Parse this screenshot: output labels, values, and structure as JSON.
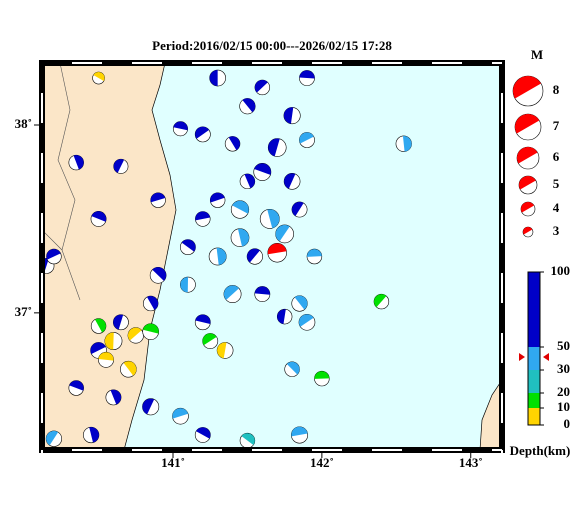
{
  "title": "Period:2016/02/15 00:00---2026/02/15 17:28",
  "map": {
    "lon_lim": [
      140.12,
      143.21
    ],
    "lat_lim": [
      36.27,
      38.33
    ],
    "lon_ticks": [
      {
        "value": 141,
        "label": "141˚"
      },
      {
        "value": 142,
        "label": "142˚"
      },
      {
        "value": 143,
        "label": "143˚"
      }
    ],
    "lat_ticks": [
      {
        "value": 37,
        "label": "37˚"
      },
      {
        "value": 38,
        "label": "38˚"
      }
    ]
  },
  "magnitude_legend": {
    "title": "M",
    "sizes": [
      8,
      7,
      6,
      5,
      4,
      3
    ],
    "color": "#ff0000"
  },
  "depth_scale": {
    "label": "Depth(km)",
    "ticks": [
      0,
      10,
      20,
      30,
      50,
      100
    ],
    "colors": [
      "#ffd400",
      "#00e000",
      "#20c0c0",
      "#30a8f0",
      "#0000c8"
    ]
  },
  "events": {
    "lon": [
      141.3,
      141.6,
      141.9,
      141.5,
      141.8,
      141.2,
      141.05,
      141.4,
      141.7,
      141.9,
      141.6,
      141.5,
      141.8,
      141.3,
      141.45,
      141.65,
      141.85,
      141.2,
      141.1,
      141.3,
      141.55,
      141.95,
      140.9,
      141.1,
      141.4,
      141.6,
      141.85,
      141.75,
      141.9,
      141.2,
      140.85,
      140.65,
      140.5,
      140.35,
      140.6,
      140.85,
      141.05,
      141.2,
      140.45,
      140.2,
      141.85,
      141.5,
      142.55,
      142.4,
      142.0,
      141.8,
      140.6,
      140.75,
      140.55,
      140.7,
      141.35,
      141.25,
      140.85,
      140.5,
      140.15,
      140.2,
      140.5,
      140.35,
      140.65,
      140.9,
      140.5,
      141.45,
      141.75,
      141.7
    ],
    "lat": [
      38.25,
      38.2,
      38.25,
      38.1,
      38.05,
      37.95,
      37.98,
      37.9,
      37.88,
      37.92,
      37.75,
      37.7,
      37.7,
      37.6,
      37.55,
      37.5,
      37.55,
      37.5,
      37.35,
      37.3,
      37.3,
      37.3,
      37.2,
      37.15,
      37.1,
      37.1,
      37.05,
      36.98,
      36.95,
      36.95,
      37.05,
      36.95,
      36.8,
      36.6,
      36.55,
      36.5,
      36.45,
      36.35,
      36.35,
      36.33,
      36.35,
      36.32,
      37.9,
      37.06,
      36.65,
      36.7,
      36.85,
      36.88,
      36.75,
      36.7,
      36.8,
      36.85,
      36.9,
      36.93,
      37.25,
      37.3,
      37.5,
      37.8,
      37.78,
      37.6,
      38.25,
      37.4,
      37.42,
      37.32
    ],
    "depth": [
      60,
      55,
      60,
      52,
      60,
      55,
      50,
      55,
      60,
      45,
      58,
      55,
      60,
      50,
      45,
      38,
      50,
      55,
      60,
      40,
      55,
      45,
      55,
      40,
      48,
      55,
      42,
      60,
      38,
      55,
      60,
      55,
      50,
      55,
      60,
      55,
      45,
      50,
      55,
      40,
      35,
      25,
      35,
      15,
      12,
      35,
      8,
      8,
      5,
      7,
      8,
      15,
      15,
      15,
      55,
      60,
      60,
      55,
      58,
      55,
      8,
      45,
      35,
      40
    ],
    "mag": [
      4.5,
      4.2,
      4.3,
      4.4,
      4.6,
      4.3,
      4.1,
      4.2,
      5.0,
      4.3,
      4.8,
      4.2,
      4.5,
      4.2,
      4.9,
      5.3,
      4.3,
      4.2,
      4.3,
      4.8,
      4.4,
      4.2,
      4.5,
      4.3,
      4.8,
      4.3,
      4.4,
      4.2,
      4.5,
      4.3,
      4.2,
      4.3,
      4.5,
      4.2,
      4.3,
      4.6,
      4.5,
      4.3,
      4.4,
      4.4,
      4.6,
      4.2,
      4.4,
      4.2,
      4.2,
      4.2,
      4.8,
      4.4,
      4.3,
      4.5,
      4.5,
      4.3,
      4.5,
      4.2,
      4.3,
      4.2,
      4.3,
      4.2,
      4.1,
      4.2,
      3.5,
      5.0,
      5.0,
      5.2
    ]
  }
}
